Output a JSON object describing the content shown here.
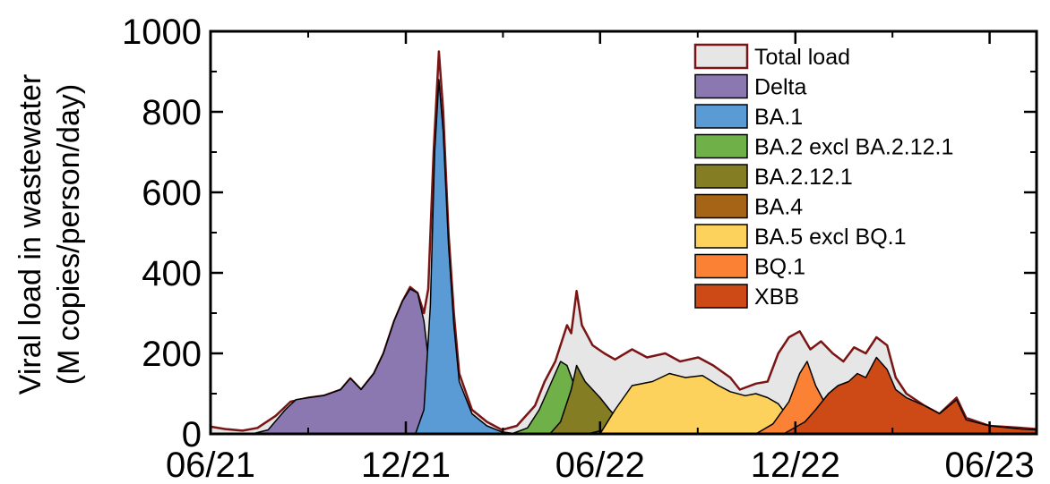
{
  "chart_data": {
    "type": "area",
    "ylabel_line1": "Viral load in wastewater",
    "ylabel_line2": "(M copies/person/day)",
    "xlabel": "",
    "xlim": [
      "2021-06-01",
      "2023-07-15"
    ],
    "ylim": [
      0,
      1000
    ],
    "y_ticks": [
      0,
      200,
      400,
      600,
      800,
      1000
    ],
    "x_ticks": [
      {
        "date": "2021-06-01",
        "label": "06/21"
      },
      {
        "date": "2021-12-01",
        "label": "12/21"
      },
      {
        "date": "2022-06-01",
        "label": "06/22"
      },
      {
        "date": "2022-12-01",
        "label": "12/22"
      },
      {
        "date": "2023-06-01",
        "label": "06/23"
      }
    ],
    "legend_position": "top-right",
    "series": [
      {
        "name": "Total load",
        "color": "#e6e6e6",
        "stroke": "#7a1515",
        "style": "line-fill",
        "points": [
          [
            "2021-06-01",
            18
          ],
          [
            "2021-06-15",
            12
          ],
          [
            "2021-07-01",
            8
          ],
          [
            "2021-07-15",
            15
          ],
          [
            "2021-08-01",
            45
          ],
          [
            "2021-08-15",
            80
          ],
          [
            "2021-09-01",
            90
          ],
          [
            "2021-09-15",
            95
          ],
          [
            "2021-10-01",
            110
          ],
          [
            "2021-10-10",
            138
          ],
          [
            "2021-10-20",
            110
          ],
          [
            "2021-11-01",
            150
          ],
          [
            "2021-11-10",
            200
          ],
          [
            "2021-11-20",
            280
          ],
          [
            "2021-11-28",
            330
          ],
          [
            "2021-12-05",
            365
          ],
          [
            "2021-12-12",
            350
          ],
          [
            "2021-12-18",
            300
          ],
          [
            "2021-12-22",
            360
          ],
          [
            "2021-12-27",
            700
          ],
          [
            "2022-01-01",
            950
          ],
          [
            "2022-01-05",
            800
          ],
          [
            "2022-01-10",
            500
          ],
          [
            "2022-01-15",
            300
          ],
          [
            "2022-01-20",
            150
          ],
          [
            "2022-02-01",
            60
          ],
          [
            "2022-02-15",
            30
          ],
          [
            "2022-03-01",
            10
          ],
          [
            "2022-03-15",
            20
          ],
          [
            "2022-04-01",
            70
          ],
          [
            "2022-04-10",
            130
          ],
          [
            "2022-04-20",
            180
          ],
          [
            "2022-05-01",
            270
          ],
          [
            "2022-05-05",
            250
          ],
          [
            "2022-05-10",
            355
          ],
          [
            "2022-05-15",
            270
          ],
          [
            "2022-05-25",
            220
          ],
          [
            "2022-06-05",
            200
          ],
          [
            "2022-06-15",
            185
          ],
          [
            "2022-07-01",
            210
          ],
          [
            "2022-07-15",
            190
          ],
          [
            "2022-08-01",
            200
          ],
          [
            "2022-08-15",
            180
          ],
          [
            "2022-09-01",
            190
          ],
          [
            "2022-09-15",
            170
          ],
          [
            "2022-10-01",
            140
          ],
          [
            "2022-10-10",
            110
          ],
          [
            "2022-10-25",
            125
          ],
          [
            "2022-11-05",
            130
          ],
          [
            "2022-11-15",
            200
          ],
          [
            "2022-11-25",
            240
          ],
          [
            "2022-12-05",
            255
          ],
          [
            "2022-12-15",
            210
          ],
          [
            "2022-12-25",
            230
          ],
          [
            "2023-01-05",
            200
          ],
          [
            "2023-01-15",
            180
          ],
          [
            "2023-01-25",
            215
          ],
          [
            "2023-02-05",
            200
          ],
          [
            "2023-02-15",
            240
          ],
          [
            "2023-02-25",
            220
          ],
          [
            "2023-03-05",
            140
          ],
          [
            "2023-03-15",
            100
          ],
          [
            "2023-04-01",
            70
          ],
          [
            "2023-04-15",
            50
          ],
          [
            "2023-05-01",
            90
          ],
          [
            "2023-05-10",
            40
          ],
          [
            "2023-06-01",
            20
          ],
          [
            "2023-07-01",
            15
          ],
          [
            "2023-07-15",
            12
          ]
        ]
      },
      {
        "name": "Delta",
        "color": "#8c78b0",
        "points": [
          [
            "2021-06-01",
            0
          ],
          [
            "2021-07-10",
            0
          ],
          [
            "2021-07-25",
            10
          ],
          [
            "2021-08-10",
            60
          ],
          [
            "2021-08-20",
            85
          ],
          [
            "2021-09-01",
            90
          ],
          [
            "2021-09-15",
            95
          ],
          [
            "2021-10-01",
            110
          ],
          [
            "2021-10-10",
            138
          ],
          [
            "2021-10-20",
            110
          ],
          [
            "2021-11-01",
            150
          ],
          [
            "2021-11-10",
            200
          ],
          [
            "2021-11-20",
            280
          ],
          [
            "2021-11-28",
            330
          ],
          [
            "2021-12-05",
            360
          ],
          [
            "2021-12-12",
            350
          ],
          [
            "2021-12-18",
            280
          ],
          [
            "2021-12-25",
            120
          ],
          [
            "2022-01-01",
            30
          ],
          [
            "2022-01-08",
            0
          ]
        ]
      },
      {
        "name": "BA.1",
        "color": "#5b9bd5",
        "points": [
          [
            "2021-12-10",
            0
          ],
          [
            "2021-12-18",
            60
          ],
          [
            "2021-12-24",
            320
          ],
          [
            "2021-12-28",
            700
          ],
          [
            "2022-01-01",
            880
          ],
          [
            "2022-01-05",
            750
          ],
          [
            "2022-01-10",
            470
          ],
          [
            "2022-01-15",
            270
          ],
          [
            "2022-01-20",
            130
          ],
          [
            "2022-02-01",
            50
          ],
          [
            "2022-02-15",
            20
          ],
          [
            "2022-03-01",
            5
          ],
          [
            "2022-03-15",
            0
          ]
        ]
      },
      {
        "name": "BA.2 excl BA.2.12.1",
        "color": "#70b048",
        "points": [
          [
            "2022-03-10",
            0
          ],
          [
            "2022-03-25",
            15
          ],
          [
            "2022-04-05",
            60
          ],
          [
            "2022-04-15",
            120
          ],
          [
            "2022-04-25",
            180
          ],
          [
            "2022-05-01",
            170
          ],
          [
            "2022-05-08",
            120
          ],
          [
            "2022-05-15",
            70
          ],
          [
            "2022-06-01",
            30
          ],
          [
            "2022-06-15",
            10
          ],
          [
            "2022-07-01",
            0
          ]
        ]
      },
      {
        "name": "BA.2.12.1",
        "color": "#857d24",
        "points": [
          [
            "2022-04-15",
            0
          ],
          [
            "2022-04-25",
            30
          ],
          [
            "2022-05-05",
            110
          ],
          [
            "2022-05-10",
            170
          ],
          [
            "2022-05-18",
            130
          ],
          [
            "2022-06-01",
            90
          ],
          [
            "2022-06-10",
            60
          ],
          [
            "2022-06-20",
            30
          ],
          [
            "2022-07-05",
            10
          ],
          [
            "2022-07-20",
            0
          ]
        ]
      },
      {
        "name": "BA.4",
        "color": "#a66416",
        "points": [
          [
            "2022-05-20",
            0
          ],
          [
            "2022-06-05",
            10
          ],
          [
            "2022-06-20",
            35
          ],
          [
            "2022-07-05",
            45
          ],
          [
            "2022-07-20",
            30
          ],
          [
            "2022-08-10",
            25
          ],
          [
            "2022-09-01",
            15
          ],
          [
            "2022-09-20",
            8
          ],
          [
            "2022-10-20",
            0
          ]
        ]
      },
      {
        "name": "BA.5 excl BQ.1",
        "color": "#fcd15c",
        "points": [
          [
            "2022-06-01",
            0
          ],
          [
            "2022-06-15",
            60
          ],
          [
            "2022-07-01",
            120
          ],
          [
            "2022-07-20",
            130
          ],
          [
            "2022-08-05",
            150
          ],
          [
            "2022-08-20",
            140
          ],
          [
            "2022-09-05",
            145
          ],
          [
            "2022-09-20",
            120
          ],
          [
            "2022-10-01",
            105
          ],
          [
            "2022-10-15",
            95
          ],
          [
            "2022-10-25",
            100
          ],
          [
            "2022-11-05",
            90
          ],
          [
            "2022-11-15",
            75
          ],
          [
            "2022-11-25",
            40
          ],
          [
            "2022-12-10",
            10
          ],
          [
            "2022-12-25",
            0
          ]
        ]
      },
      {
        "name": "BQ.1",
        "color": "#fb8234",
        "points": [
          [
            "2022-10-25",
            0
          ],
          [
            "2022-11-10",
            25
          ],
          [
            "2022-11-25",
            80
          ],
          [
            "2022-12-05",
            150
          ],
          [
            "2022-12-12",
            180
          ],
          [
            "2022-12-20",
            120
          ],
          [
            "2023-01-01",
            60
          ],
          [
            "2023-01-10",
            40
          ],
          [
            "2023-01-25",
            15
          ],
          [
            "2023-02-10",
            0
          ]
        ]
      },
      {
        "name": "XBB",
        "color": "#cd4a16",
        "points": [
          [
            "2022-11-20",
            0
          ],
          [
            "2022-12-10",
            30
          ],
          [
            "2022-12-20",
            60
          ],
          [
            "2023-01-01",
            100
          ],
          [
            "2023-01-10",
            120
          ],
          [
            "2023-01-20",
            130
          ],
          [
            "2023-01-28",
            150
          ],
          [
            "2023-02-05",
            140
          ],
          [
            "2023-02-15",
            190
          ],
          [
            "2023-02-25",
            160
          ],
          [
            "2023-03-05",
            110
          ],
          [
            "2023-03-15",
            90
          ],
          [
            "2023-04-01",
            70
          ],
          [
            "2023-04-15",
            50
          ],
          [
            "2023-05-01",
            85
          ],
          [
            "2023-05-10",
            35
          ],
          [
            "2023-06-01",
            20
          ],
          [
            "2023-07-01",
            12
          ],
          [
            "2023-07-15",
            10
          ]
        ]
      }
    ]
  }
}
